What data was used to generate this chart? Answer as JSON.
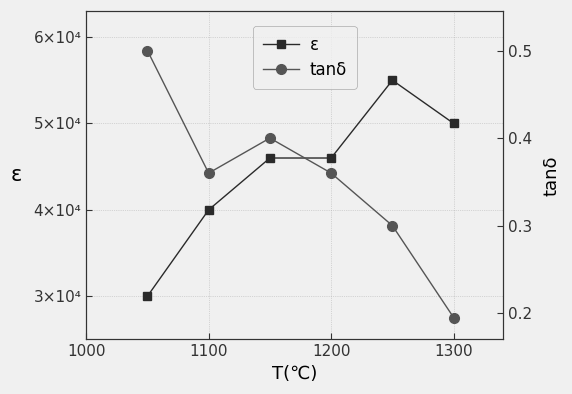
{
  "T": [
    1050,
    1100,
    1150,
    1200,
    1250,
    1300
  ],
  "epsilon": [
    30000,
    40000,
    46000,
    46000,
    55000,
    50000
  ],
  "tand": [
    0.5,
    0.36,
    0.4,
    0.36,
    0.3,
    0.195
  ],
  "epsilon_color": "#2a2a2a",
  "tand_color": "#555555",
  "xlabel": "T(℃)",
  "ylabel_left": "ε",
  "ylabel_right": "tanδ",
  "xlim": [
    1000,
    1340
  ],
  "ylim_left": [
    25000,
    63000
  ],
  "ylim_right": [
    0.17,
    0.545
  ],
  "legend_epsilon": "ε",
  "legend_tand": "tanδ",
  "bg_color": "#f0f0f0",
  "yticks_left": [
    30000,
    40000,
    50000,
    60000
  ],
  "yticks_right": [
    0.2,
    0.3,
    0.4,
    0.5
  ],
  "xticks": [
    1000,
    1100,
    1200,
    1300
  ],
  "label_fontsize": 13,
  "tick_fontsize": 11,
  "legend_fontsize": 12
}
